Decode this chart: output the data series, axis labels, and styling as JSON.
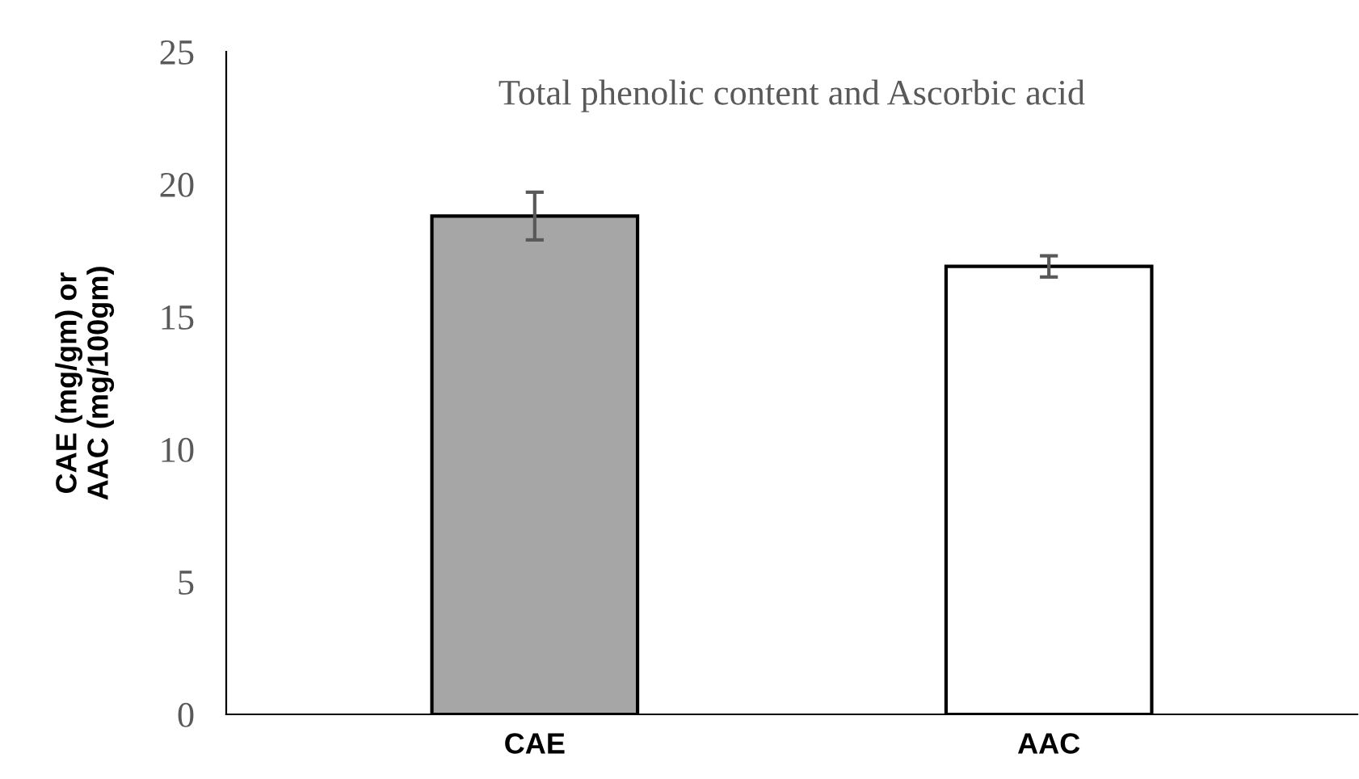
{
  "chart_data": {
    "type": "bar",
    "title": "Total phenolic content and Ascorbic acid",
    "ylabel": "CAE (mg/gm) or\nAAC (mg/100gm)",
    "categories": [
      "CAE",
      "AAC"
    ],
    "values": [
      18.8,
      16.9
    ],
    "errors": [
      0.9,
      0.4
    ],
    "colors": [
      "#a6a6a6",
      "#ffffff"
    ],
    "ylim": [
      0,
      25
    ],
    "yticks": [
      0,
      5,
      10,
      15,
      20,
      25
    ],
    "grid": false,
    "legend": false
  }
}
